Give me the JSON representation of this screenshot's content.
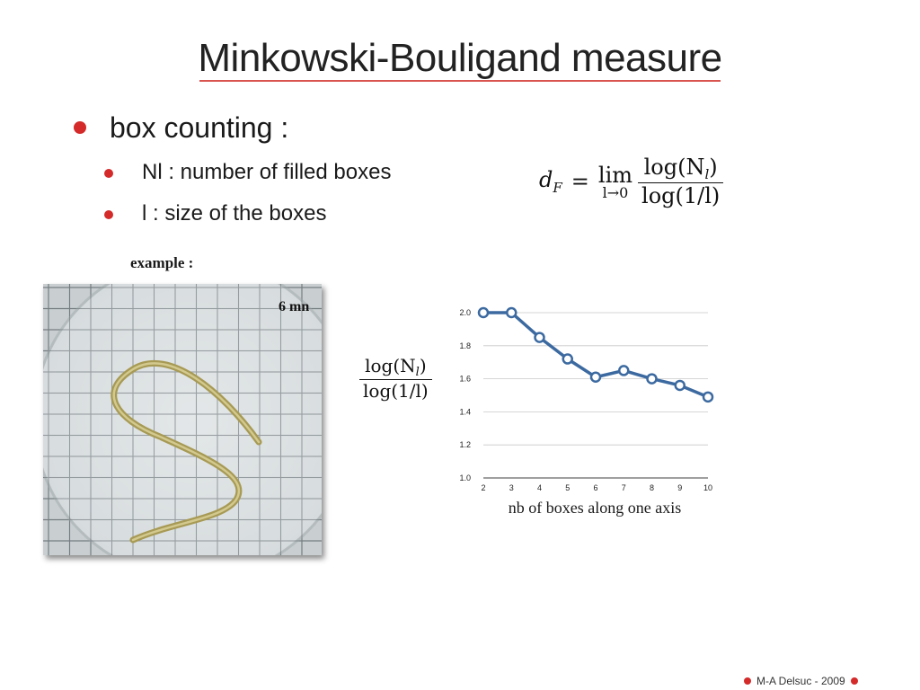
{
  "slide": {
    "title": "Minkowski-Bouligand measure",
    "bullets": {
      "main": "box counting :",
      "sub1": "Nl : number of filled boxes",
      "sub2": "l : size of the boxes"
    },
    "formula": {
      "lhs": "d",
      "lhs_sub": "F",
      "eq": "=",
      "lim": "lim",
      "lim_sub": "l→0",
      "numerator": "log(N",
      "numerator_sub": "l",
      "numerator_close": ")",
      "denominator": "log(1/l)"
    },
    "example_label": "example :",
    "photo_label": "6 mn",
    "ylabel": {
      "numerator": "log(N",
      "numerator_sub": "l",
      "numerator_close": ")",
      "denominator": "log(1/l)"
    },
    "footer": "M-A Delsuc - 2009"
  },
  "colors": {
    "accent": "#d42a2a",
    "series": "#3c6aa0"
  },
  "chart_data": {
    "type": "line",
    "x": [
      2,
      3,
      4,
      5,
      6,
      7,
      8,
      9,
      10
    ],
    "series": [
      {
        "values": [
          2.0,
          2.0,
          1.85,
          1.72,
          1.61,
          1.65,
          1.6,
          1.56,
          1.49
        ]
      }
    ],
    "xticks": [
      "2",
      "3",
      "4",
      "5",
      "6",
      "7",
      "8",
      "9",
      "10"
    ],
    "yticks": [
      "1.0",
      "1.2",
      "1.4",
      "1.6",
      "1.8",
      "2.0"
    ],
    "xlim": [
      2,
      10
    ],
    "ylim": [
      1.0,
      2.0
    ],
    "xlabel": "nb of boxes along one axis",
    "grid": true
  }
}
